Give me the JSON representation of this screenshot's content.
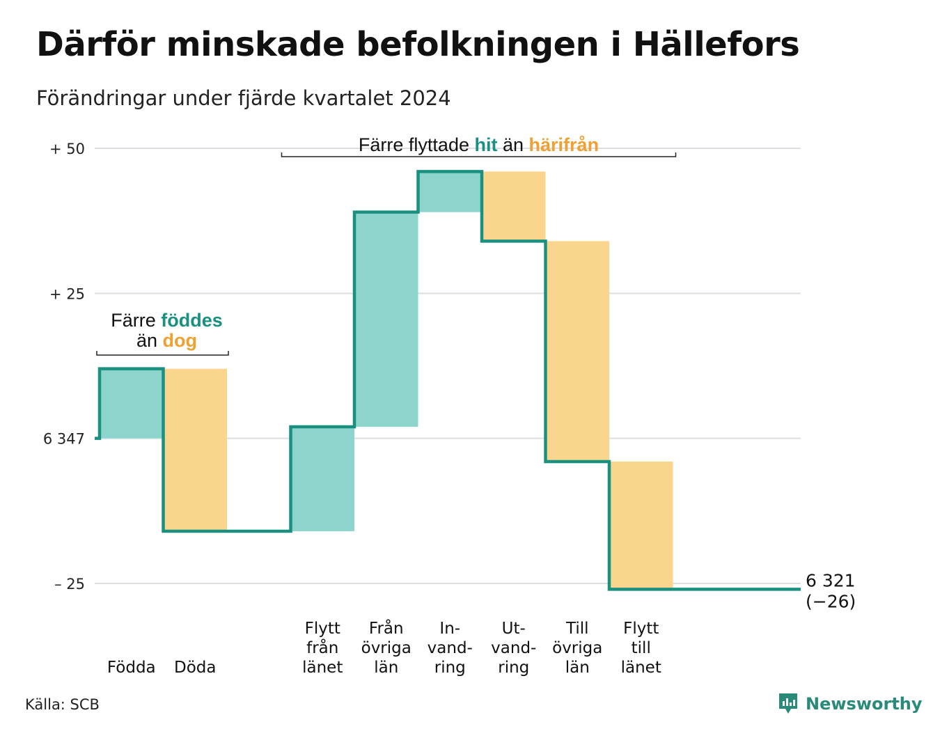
{
  "title": "Därför minskade befolkningen i Hällefors",
  "subtitle": "Förändringar under fjärde kvartalet 2024",
  "source": "Källa: SCB",
  "brand": {
    "name": "Newsworthy",
    "icon": "newsworthy-logo-icon"
  },
  "colors": {
    "increase": "#8dd5cc",
    "decrease": "#f9d58e",
    "line": "#1a9080",
    "teal_text": "#1a9080",
    "orange_text": "#f0a030",
    "grid": "#dddde3"
  },
  "chart_data": {
    "type": "waterfall",
    "start_value": 6347,
    "end_value": 6321,
    "end_label": "6 321",
    "end_change_label": "(−26)",
    "y_ticks": [
      {
        "value": 50,
        "label": "+ 50"
      },
      {
        "value": 25,
        "label": "+ 25"
      },
      {
        "value": 0,
        "label": "6 347"
      },
      {
        "value": -25,
        "label": "– 25"
      }
    ],
    "ylim": [
      -25,
      50
    ],
    "grid": true,
    "categories": [
      {
        "id": "fodda",
        "lines": [
          "Födda"
        ],
        "change": 12
      },
      {
        "id": "doda",
        "lines": [
          "Döda"
        ],
        "change": -28
      },
      {
        "id": "gap",
        "lines": [],
        "change": 0
      },
      {
        "id": "flytt_fran_lanet",
        "lines": [
          "Flytt",
          "från",
          "länet"
        ],
        "change": 18
      },
      {
        "id": "fran_ovriga_lan",
        "lines": [
          "Från",
          "övriga",
          "län"
        ],
        "change": 37
      },
      {
        "id": "invandring",
        "lines": [
          "In-",
          "vand-",
          "ring"
        ],
        "change": 7
      },
      {
        "id": "utvandring",
        "lines": [
          "Ut-",
          "vand-",
          "ring"
        ],
        "change": -12
      },
      {
        "id": "till_ovriga_lan",
        "lines": [
          "Till",
          "övriga",
          "län"
        ],
        "change": -38
      },
      {
        "id": "flytt_till_lanet",
        "lines": [
          "Flytt",
          "till",
          "länet"
        ],
        "change": -22
      }
    ],
    "annotations": [
      {
        "id": "births",
        "parts_line1": [
          {
            "text": "Färre",
            "style": "normal"
          },
          {
            "text": "föddes",
            "style": "teal"
          }
        ],
        "parts_line2": [
          {
            "text": "än",
            "style": "normal"
          },
          {
            "text": "dog",
            "style": "orange"
          }
        ],
        "from_index": 0,
        "to_index": 1
      },
      {
        "id": "migration",
        "parts_line1": [
          {
            "text": "Färre flyttade",
            "style": "normal"
          },
          {
            "text": "hit",
            "style": "teal"
          },
          {
            "text": "än",
            "style": "normal"
          },
          {
            "text": "härifrån",
            "style": "orange"
          }
        ],
        "from_index": 3,
        "to_index": 8
      }
    ]
  }
}
